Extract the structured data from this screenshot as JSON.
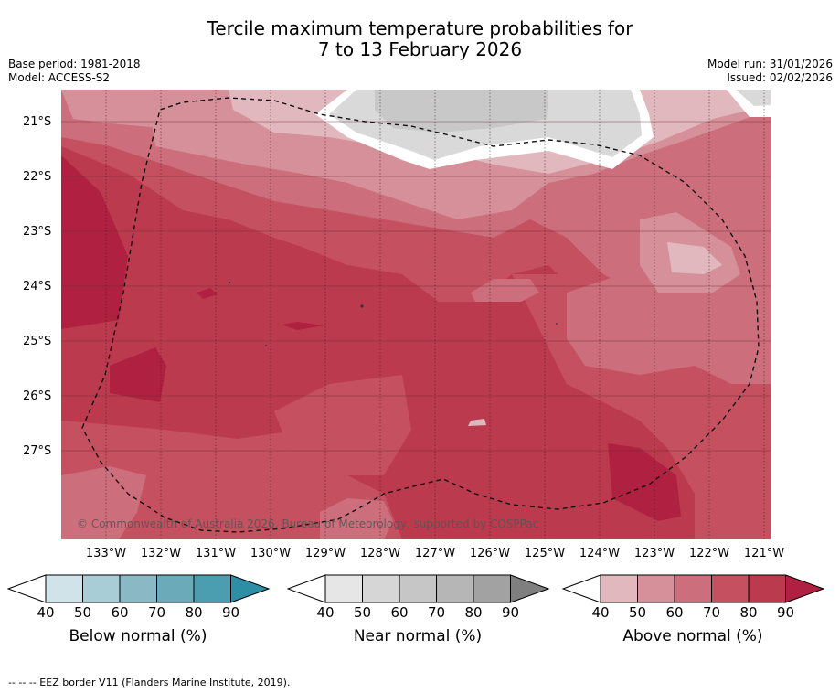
{
  "title": {
    "line1": "Tercile maximum temperature probabilities for",
    "line2": "7 to 13 February 2026"
  },
  "meta_left": {
    "base_period": "Base period: 1981-2018",
    "model": "Model: ACCESS-S2"
  },
  "meta_right": {
    "model_run": "Model run: 31/01/2026",
    "issued": "Issued: 02/02/2026"
  },
  "map": {
    "lat_labels": [
      "21°S",
      "22°S",
      "23°S",
      "24°S",
      "25°S",
      "26°S",
      "27°S"
    ],
    "lon_labels": [
      "133°W",
      "132°W",
      "131°W",
      "130°W",
      "129°W",
      "128°W",
      "127°W",
      "126°W",
      "125°W",
      "124°W",
      "123°W",
      "122°W",
      "121°W"
    ],
    "copyright": "© Commonwealth of Australia 2026, Bureau of Meteorology, supported by COSPPac",
    "colors": {
      "above_40": "#e2b8bf",
      "above_50": "#d6909a",
      "above_60": "#cc6e7b",
      "above_70": "#c5505f",
      "above_80": "#bb3a4d",
      "above_90": "#b02040",
      "near_50": "#d9d9d9",
      "near_60": "#c8c8c8"
    }
  },
  "colorbars": [
    {
      "label": "Below normal (%)",
      "ticks": [
        "40",
        "50",
        "60",
        "70",
        "80",
        "90"
      ],
      "colors": [
        "#cfe3e9",
        "#a9cdd6",
        "#8ab8c5",
        "#6aaab9",
        "#4a9eb0",
        "#2d8ea5"
      ]
    },
    {
      "label": "Near normal (%)",
      "ticks": [
        "40",
        "50",
        "60",
        "70",
        "80",
        "90"
      ],
      "colors": [
        "#e6e6e6",
        "#d6d6d6",
        "#c6c6c6",
        "#b6b6b6",
        "#a2a2a2",
        "#7f7f7f"
      ]
    },
    {
      "label": "Above normal (%)",
      "ticks": [
        "40",
        "50",
        "60",
        "70",
        "80",
        "90"
      ],
      "colors": [
        "#e2b8bf",
        "#d6909a",
        "#cc6e7b",
        "#c5505f",
        "#bb3a4d",
        "#b02040"
      ]
    }
  ],
  "footer": "-- -- -- EEZ border V11 (Flanders Marine Institute, 2019)."
}
